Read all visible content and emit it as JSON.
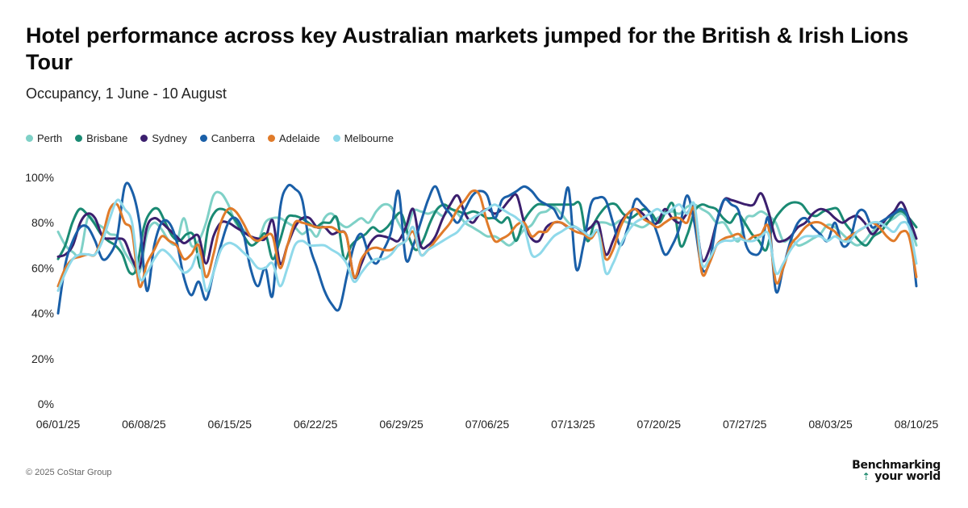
{
  "header": {
    "title": "Hotel performance across key Australian markets jumped for the British & Irish Lions Tour",
    "subtitle": "Occupancy, 1 June - 10 August"
  },
  "footer": {
    "copyright": "© 2025 CoStar Group",
    "brand_line1": "Benchmarking",
    "brand_line2": "your world",
    "brand_icon": "arrow-up-icon"
  },
  "chart_data": {
    "type": "line",
    "title": "Hotel performance across key Australian markets jumped for the British & Irish Lions Tour",
    "subtitle": "Occupancy, 1 June - 10 August",
    "xlabel": "",
    "ylabel": "",
    "ylim": [
      0,
      100
    ],
    "yticks": [
      "0%",
      "20%",
      "40%",
      "60%",
      "80%",
      "100%"
    ],
    "yticks_values": [
      0,
      20,
      40,
      60,
      80,
      100
    ],
    "xticks": [
      "06/01/25",
      "06/08/25",
      "06/15/25",
      "06/22/25",
      "06/29/25",
      "07/06/25",
      "07/13/25",
      "07/20/25",
      "07/27/25",
      "08/03/25",
      "08/10/25"
    ],
    "grid": false,
    "legend_position": "top-left",
    "x_start": "06/01/25",
    "x_end": "08/10/25",
    "series": [
      {
        "name": "Perth",
        "color": "#7fd1c7",
        "values": [
          76,
          70,
          67,
          66,
          82,
          80,
          78,
          75,
          74,
          67,
          62,
          58,
          75,
          80,
          77,
          72,
          71,
          82,
          70,
          72,
          80,
          92,
          93,
          88,
          80,
          77,
          74,
          72,
          80,
          82,
          82,
          80,
          78,
          75,
          77,
          74,
          82,
          84,
          80,
          78,
          80,
          82,
          80,
          85,
          88,
          87,
          80,
          76,
          85,
          85,
          84,
          85,
          83,
          86,
          84,
          80,
          78,
          76,
          74,
          74,
          72,
          70,
          73,
          77,
          79,
          84,
          85,
          87,
          84,
          80,
          78,
          76,
          78,
          80,
          80,
          79,
          81,
          80,
          79,
          78,
          80,
          82,
          84,
          85,
          84,
          87,
          88,
          86,
          84,
          80,
          80,
          75,
          72,
          82,
          83,
          85,
          83,
          80,
          72,
          73,
          70,
          71,
          73,
          75,
          79,
          78,
          75,
          72,
          70,
          72,
          76,
          78,
          80,
          82,
          84,
          80,
          70
        ]
      },
      {
        "name": "Brisbane",
        "color": "#1a8a73",
        "values": [
          64,
          70,
          80,
          86,
          84,
          80,
          75,
          72,
          70,
          66,
          58,
          60,
          78,
          85,
          86,
          80,
          74,
          72,
          75,
          74,
          60,
          78,
          85,
          86,
          84,
          80,
          74,
          70,
          72,
          75,
          64,
          72,
          82,
          83,
          82,
          80,
          78,
          80,
          80,
          82,
          64,
          70,
          73,
          75,
          78,
          76,
          78,
          82,
          84,
          74,
          68,
          72,
          80,
          86,
          88,
          86,
          85,
          84,
          85,
          84,
          82,
          82,
          80,
          82,
          72,
          80,
          85,
          88,
          88,
          88,
          88,
          88,
          88,
          88,
          72,
          80,
          85,
          88,
          88,
          84,
          82,
          84,
          86,
          84,
          80,
          85,
          88,
          70,
          75,
          85,
          88,
          87,
          86,
          82,
          80,
          84,
          80,
          75,
          72,
          68,
          80,
          85,
          88,
          89,
          88,
          84,
          83,
          85,
          86,
          86,
          80,
          76,
          72,
          70,
          74,
          76,
          80,
          84,
          85,
          82,
          78
        ]
      },
      {
        "name": "Sydney",
        "color": "#3b1f6e",
        "values": [
          65,
          66,
          70,
          80,
          84,
          82,
          74,
          73,
          73,
          72,
          64,
          60,
          78,
          82,
          80,
          77,
          74,
          71,
          73,
          74,
          62,
          74,
          80,
          80,
          78,
          76,
          74,
          73,
          73,
          81,
          62,
          70,
          78,
          82,
          82,
          78,
          78,
          75,
          76,
          74,
          56,
          62,
          70,
          74,
          74,
          73,
          72,
          78,
          86,
          70,
          70,
          74,
          82,
          88,
          92,
          84,
          80,
          84,
          86,
          84,
          86,
          90,
          92,
          80,
          73,
          72,
          78,
          80,
          80,
          78,
          78,
          76,
          78,
          80,
          66,
          72,
          80,
          84,
          86,
          84,
          80,
          80,
          86,
          82,
          80,
          84,
          86,
          64,
          68,
          80,
          90,
          90,
          89,
          88,
          88,
          93,
          85,
          73,
          72,
          74,
          78,
          80,
          84,
          86,
          85,
          82,
          80,
          82,
          83,
          80,
          75,
          78,
          82,
          85,
          89,
          82,
          73
        ]
      },
      {
        "name": "Canberra",
        "color": "#1a5fa8",
        "values": [
          40,
          62,
          72,
          78,
          78,
          72,
          64,
          66,
          74,
          96,
          94,
          80,
          50,
          70,
          80,
          80,
          72,
          56,
          48,
          54,
          46,
          58,
          70,
          80,
          82,
          76,
          60,
          52,
          60,
          48,
          86,
          96,
          95,
          90,
          70,
          60,
          50,
          44,
          42,
          56,
          70,
          75,
          66,
          62,
          68,
          76,
          94,
          64,
          70,
          80,
          90,
          96,
          88,
          84,
          80,
          86,
          92,
          94,
          92,
          82,
          90,
          92,
          94,
          96,
          94,
          90,
          88,
          86,
          82,
          95,
          60,
          70,
          88,
          91,
          90,
          80,
          70,
          78,
          90,
          88,
          84,
          75,
          66,
          70,
          78,
          92,
          80,
          60,
          62,
          80,
          90,
          88,
          85,
          70,
          66,
          68,
          82,
          50,
          60,
          72,
          80,
          82,
          78,
          75,
          72,
          80,
          70,
          72,
          84,
          85,
          78,
          80,
          82,
          84,
          86,
          80,
          52
        ]
      },
      {
        "name": "Adelaide",
        "color": "#e07b2a",
        "values": [
          52,
          60,
          64,
          65,
          66,
          66,
          74,
          86,
          88,
          80,
          76,
          52,
          62,
          68,
          74,
          72,
          70,
          64,
          66,
          70,
          56,
          66,
          80,
          86,
          85,
          80,
          74,
          72,
          74,
          74,
          60,
          70,
          80,
          80,
          79,
          78,
          78,
          78,
          76,
          74,
          56,
          64,
          68,
          69,
          68,
          68,
          70,
          72,
          76,
          66,
          68,
          72,
          76,
          80,
          86,
          90,
          94,
          92,
          80,
          72,
          73,
          75,
          79,
          80,
          74,
          76,
          76,
          80,
          80,
          78,
          76,
          75,
          73,
          76,
          64,
          68,
          78,
          84,
          86,
          82,
          80,
          78,
          80,
          82,
          82,
          80,
          86,
          58,
          62,
          70,
          73,
          74,
          75,
          72,
          74,
          75,
          78,
          54,
          60,
          70,
          74,
          78,
          80,
          80,
          78,
          76,
          72,
          74,
          76,
          78,
          80,
          78,
          74,
          72,
          76,
          74,
          56
        ]
      },
      {
        "name": "Melbourne",
        "color": "#8fd9ea",
        "values": [
          50,
          58,
          64,
          66,
          66,
          66,
          72,
          82,
          90,
          86,
          80,
          56,
          58,
          64,
          68,
          66,
          62,
          58,
          60,
          66,
          50,
          58,
          68,
          71,
          70,
          67,
          64,
          60,
          60,
          62,
          52,
          60,
          70,
          72,
          70,
          70,
          70,
          68,
          66,
          62,
          54,
          58,
          62,
          64,
          64,
          66,
          70,
          72,
          78,
          66,
          68,
          70,
          72,
          74,
          76,
          80,
          82,
          84,
          86,
          88,
          86,
          84,
          82,
          78,
          66,
          66,
          70,
          74,
          76,
          78,
          78,
          76,
          74,
          76,
          58,
          62,
          70,
          76,
          80,
          82,
          84,
          86,
          84,
          86,
          88,
          84,
          88,
          62,
          64,
          70,
          72,
          72,
          73,
          72,
          72,
          74,
          75,
          58,
          62,
          68,
          72,
          74,
          74,
          74,
          72,
          74,
          72,
          72,
          76,
          78,
          80,
          80,
          78,
          76,
          80,
          78,
          62
        ]
      }
    ]
  }
}
